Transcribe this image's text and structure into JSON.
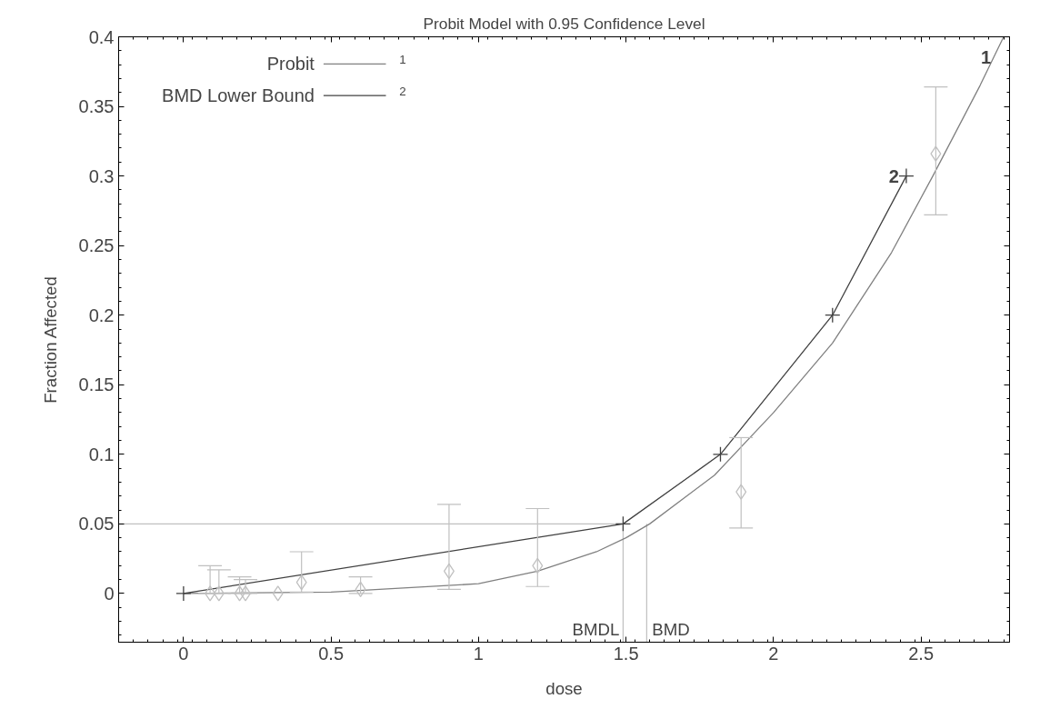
{
  "chart_data": {
    "type": "line",
    "title": "Probit Model with 0.95 Confidence Level",
    "xlabel": "dose",
    "ylabel": "Fraction Affected",
    "xlim": [
      -0.22,
      2.8
    ],
    "ylim": [
      -0.035,
      0.4
    ],
    "xticks": [
      0,
      0.5,
      1,
      1.5,
      2,
      2.5
    ],
    "yticks": [
      0,
      0.05,
      0.1,
      0.15,
      0.2,
      0.25,
      0.3,
      0.35,
      0.4
    ],
    "grid": false,
    "legend": "top left",
    "series": [
      {
        "name": "Probit",
        "color": "#808080",
        "marker": "none",
        "x": [
          0,
          0.5,
          1,
          1.2,
          1.4,
          1.5,
          1.58,
          1.8,
          2.0,
          2.2,
          2.4,
          2.54,
          2.7,
          2.78
        ],
        "values": [
          0,
          0.001,
          0.007,
          0.016,
          0.03,
          0.04,
          0.05,
          0.085,
          0.13,
          0.18,
          0.245,
          0.3,
          0.365,
          0.4
        ]
      },
      {
        "name": "BMD Lower Bound",
        "color": "#404040",
        "marker": "cross",
        "x": [
          0,
          1.49,
          1.82,
          2.2,
          2.45
        ],
        "values": [
          0,
          0.05,
          0.1,
          0.2,
          0.3
        ]
      },
      {
        "type": "scatter",
        "color": "#c0c0c0",
        "marker": "diamond",
        "x": [
          0.09,
          0.12,
          0.19,
          0.21,
          0.32,
          0.4,
          0.6,
          0.9,
          1.2,
          1.89,
          2.55
        ],
        "values": [
          0,
          0,
          0,
          0,
          0,
          0.008,
          0.003,
          0.016,
          0.02,
          0.073,
          0.316
        ],
        "errors": [
          [
            0,
            0.02
          ],
          [
            0,
            0.017
          ],
          [
            0,
            0.012
          ],
          [
            0,
            0.01
          ],
          null,
          [
            0.001,
            0.03
          ],
          [
            0,
            0.012
          ],
          [
            0.003,
            0.064
          ],
          [
            0.005,
            0.061
          ],
          [
            0.047,
            0.112
          ],
          [
            0.272,
            0.364
          ]
        ]
      }
    ],
    "ref_lines": [
      {
        "axis": "y",
        "value": 0.05,
        "color": "#c0c0c0"
      },
      {
        "axis": "x",
        "value": 1.49,
        "label": "BMDL",
        "color": "#c0c0c0"
      },
      {
        "axis": "x",
        "value": 1.57,
        "label": "BMD",
        "color": "#c0c0c0"
      }
    ],
    "annotations": [
      {
        "text": "1",
        "x": 2.78,
        "y": 0.4
      },
      {
        "text": "2",
        "x": 2.45,
        "y": 0.3
      }
    ]
  }
}
